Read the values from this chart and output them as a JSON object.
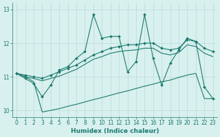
{
  "xlabel": "Humidex (Indice chaleur)",
  "x": [
    0,
    1,
    2,
    3,
    4,
    5,
    6,
    7,
    8,
    9,
    10,
    11,
    12,
    13,
    14,
    15,
    16,
    17,
    18,
    19,
    20,
    21,
    22,
    23
  ],
  "line_jagged1": [
    11.1,
    10.95,
    10.8,
    10.4,
    10.75,
    11.2,
    11.3,
    11.55,
    11.75,
    12.85,
    12.15,
    12.2,
    12.2,
    11.15,
    11.45,
    12.85,
    11.55,
    10.75,
    11.4,
    11.8,
    12.15,
    12.05,
    10.7,
    10.35
  ],
  "line_smooth_upper": [
    11.1,
    11.05,
    11.0,
    10.95,
    11.05,
    11.15,
    11.25,
    11.35,
    11.5,
    11.65,
    11.75,
    11.85,
    11.9,
    11.95,
    11.95,
    12.0,
    12.0,
    11.85,
    11.8,
    11.85,
    12.1,
    12.05,
    11.85,
    11.75
  ],
  "line_smooth_mid": [
    11.1,
    11.0,
    10.95,
    10.88,
    10.95,
    11.02,
    11.12,
    11.22,
    11.37,
    11.52,
    11.6,
    11.7,
    11.75,
    11.78,
    11.8,
    11.85,
    11.85,
    11.7,
    11.65,
    11.72,
    11.95,
    11.9,
    11.7,
    11.6
  ],
  "line_flat_lower": [
    11.1,
    11.0,
    10.85,
    9.95,
    10.0,
    10.05,
    10.12,
    10.18,
    10.25,
    10.32,
    10.38,
    10.45,
    10.52,
    10.58,
    10.65,
    10.72,
    10.78,
    10.85,
    10.9,
    10.98,
    11.05,
    11.1,
    10.35,
    10.35
  ],
  "color": "#1a7a6e",
  "bg_color": "#d8f0ee",
  "grid_color": "#b8dbd8",
  "ylim": [
    9.8,
    13.2
  ],
  "yticks": [
    10,
    11,
    12,
    13
  ],
  "xticks": [
    0,
    1,
    2,
    3,
    4,
    5,
    6,
    7,
    8,
    9,
    10,
    11,
    12,
    13,
    14,
    15,
    16,
    17,
    18,
    19,
    20,
    21,
    22,
    23
  ]
}
